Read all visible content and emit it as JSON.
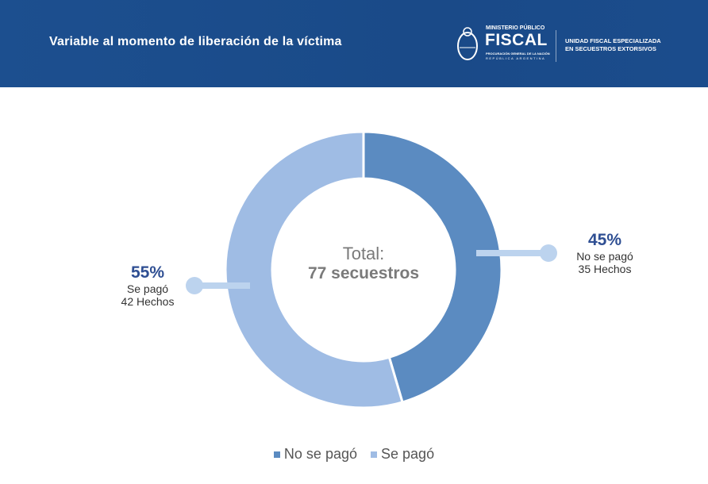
{
  "header": {
    "title": "Variable al momento de liberación de la víctima",
    "logo": {
      "line1": "MINISTERIO PÚBLICO",
      "line2": "FISCAL",
      "line3": "PROCURACIÓN GENERAL DE LA NACIÓN",
      "line4": "REPÚBLICA ARGENTINA",
      "unit_line1": "UNIDAD FISCAL ESPECIALIZADA",
      "unit_line2": "EN SECUESTROS EXTORSIVOS"
    }
  },
  "chart_data": {
    "type": "pie",
    "donut": true,
    "categories": [
      "No se pagó",
      "Se pagó"
    ],
    "values": [
      35,
      42
    ],
    "percentages": [
      "45%",
      "55%"
    ],
    "counts": [
      "35 Hechos",
      "42 Hechos"
    ],
    "colors": [
      "#5b8bc1",
      "#9fbce4"
    ],
    "center": {
      "line1": "Total:",
      "line2": "77 secuestros"
    },
    "legend": {
      "position": "bottom",
      "items": [
        "No se pagó",
        "Se pagó"
      ]
    }
  }
}
